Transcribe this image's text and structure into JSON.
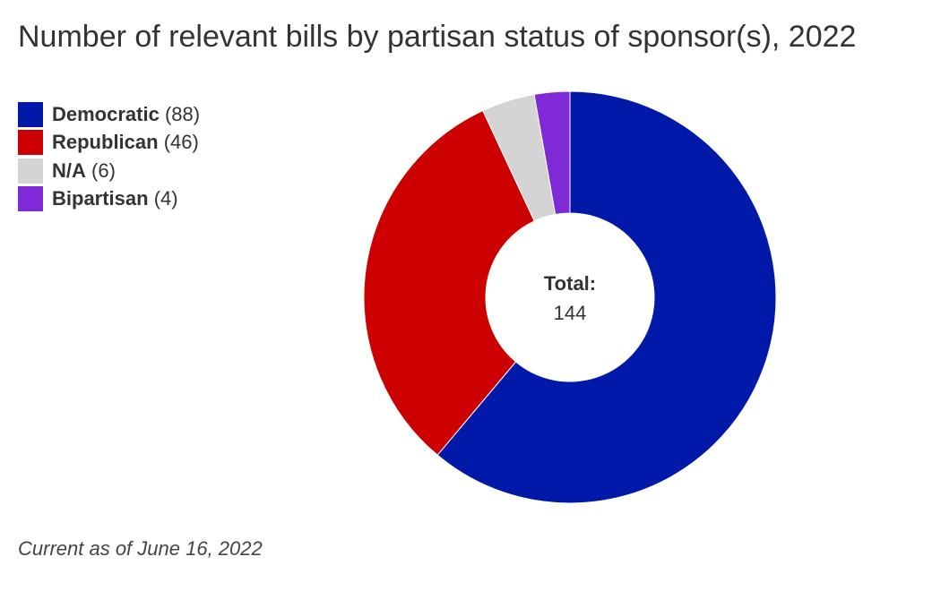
{
  "title": "Number of relevant bills by partisan status of sponsor(s), 2022",
  "footnote": "Current as of June 16, 2022",
  "center_label": {
    "label": "Total:",
    "value": "144"
  },
  "chart_data": {
    "type": "pie",
    "title": "Number of relevant bills by partisan status of sponsor(s), 2022",
    "slices": [
      {
        "label": "Democratic",
        "value": 88,
        "count_text": "(88)",
        "color": "#0019a8"
      },
      {
        "label": "Republican",
        "value": 46,
        "count_text": "(46)",
        "color": "#cc0000"
      },
      {
        "label": "N/A",
        "value": 6,
        "count_text": "(6)",
        "color": "#d4d4d4"
      },
      {
        "label": "Bipartisan",
        "value": 4,
        "count_text": "(4)",
        "color": "#7f2ad6"
      }
    ],
    "total": 144,
    "donut": true,
    "legend_position": "top-left"
  }
}
